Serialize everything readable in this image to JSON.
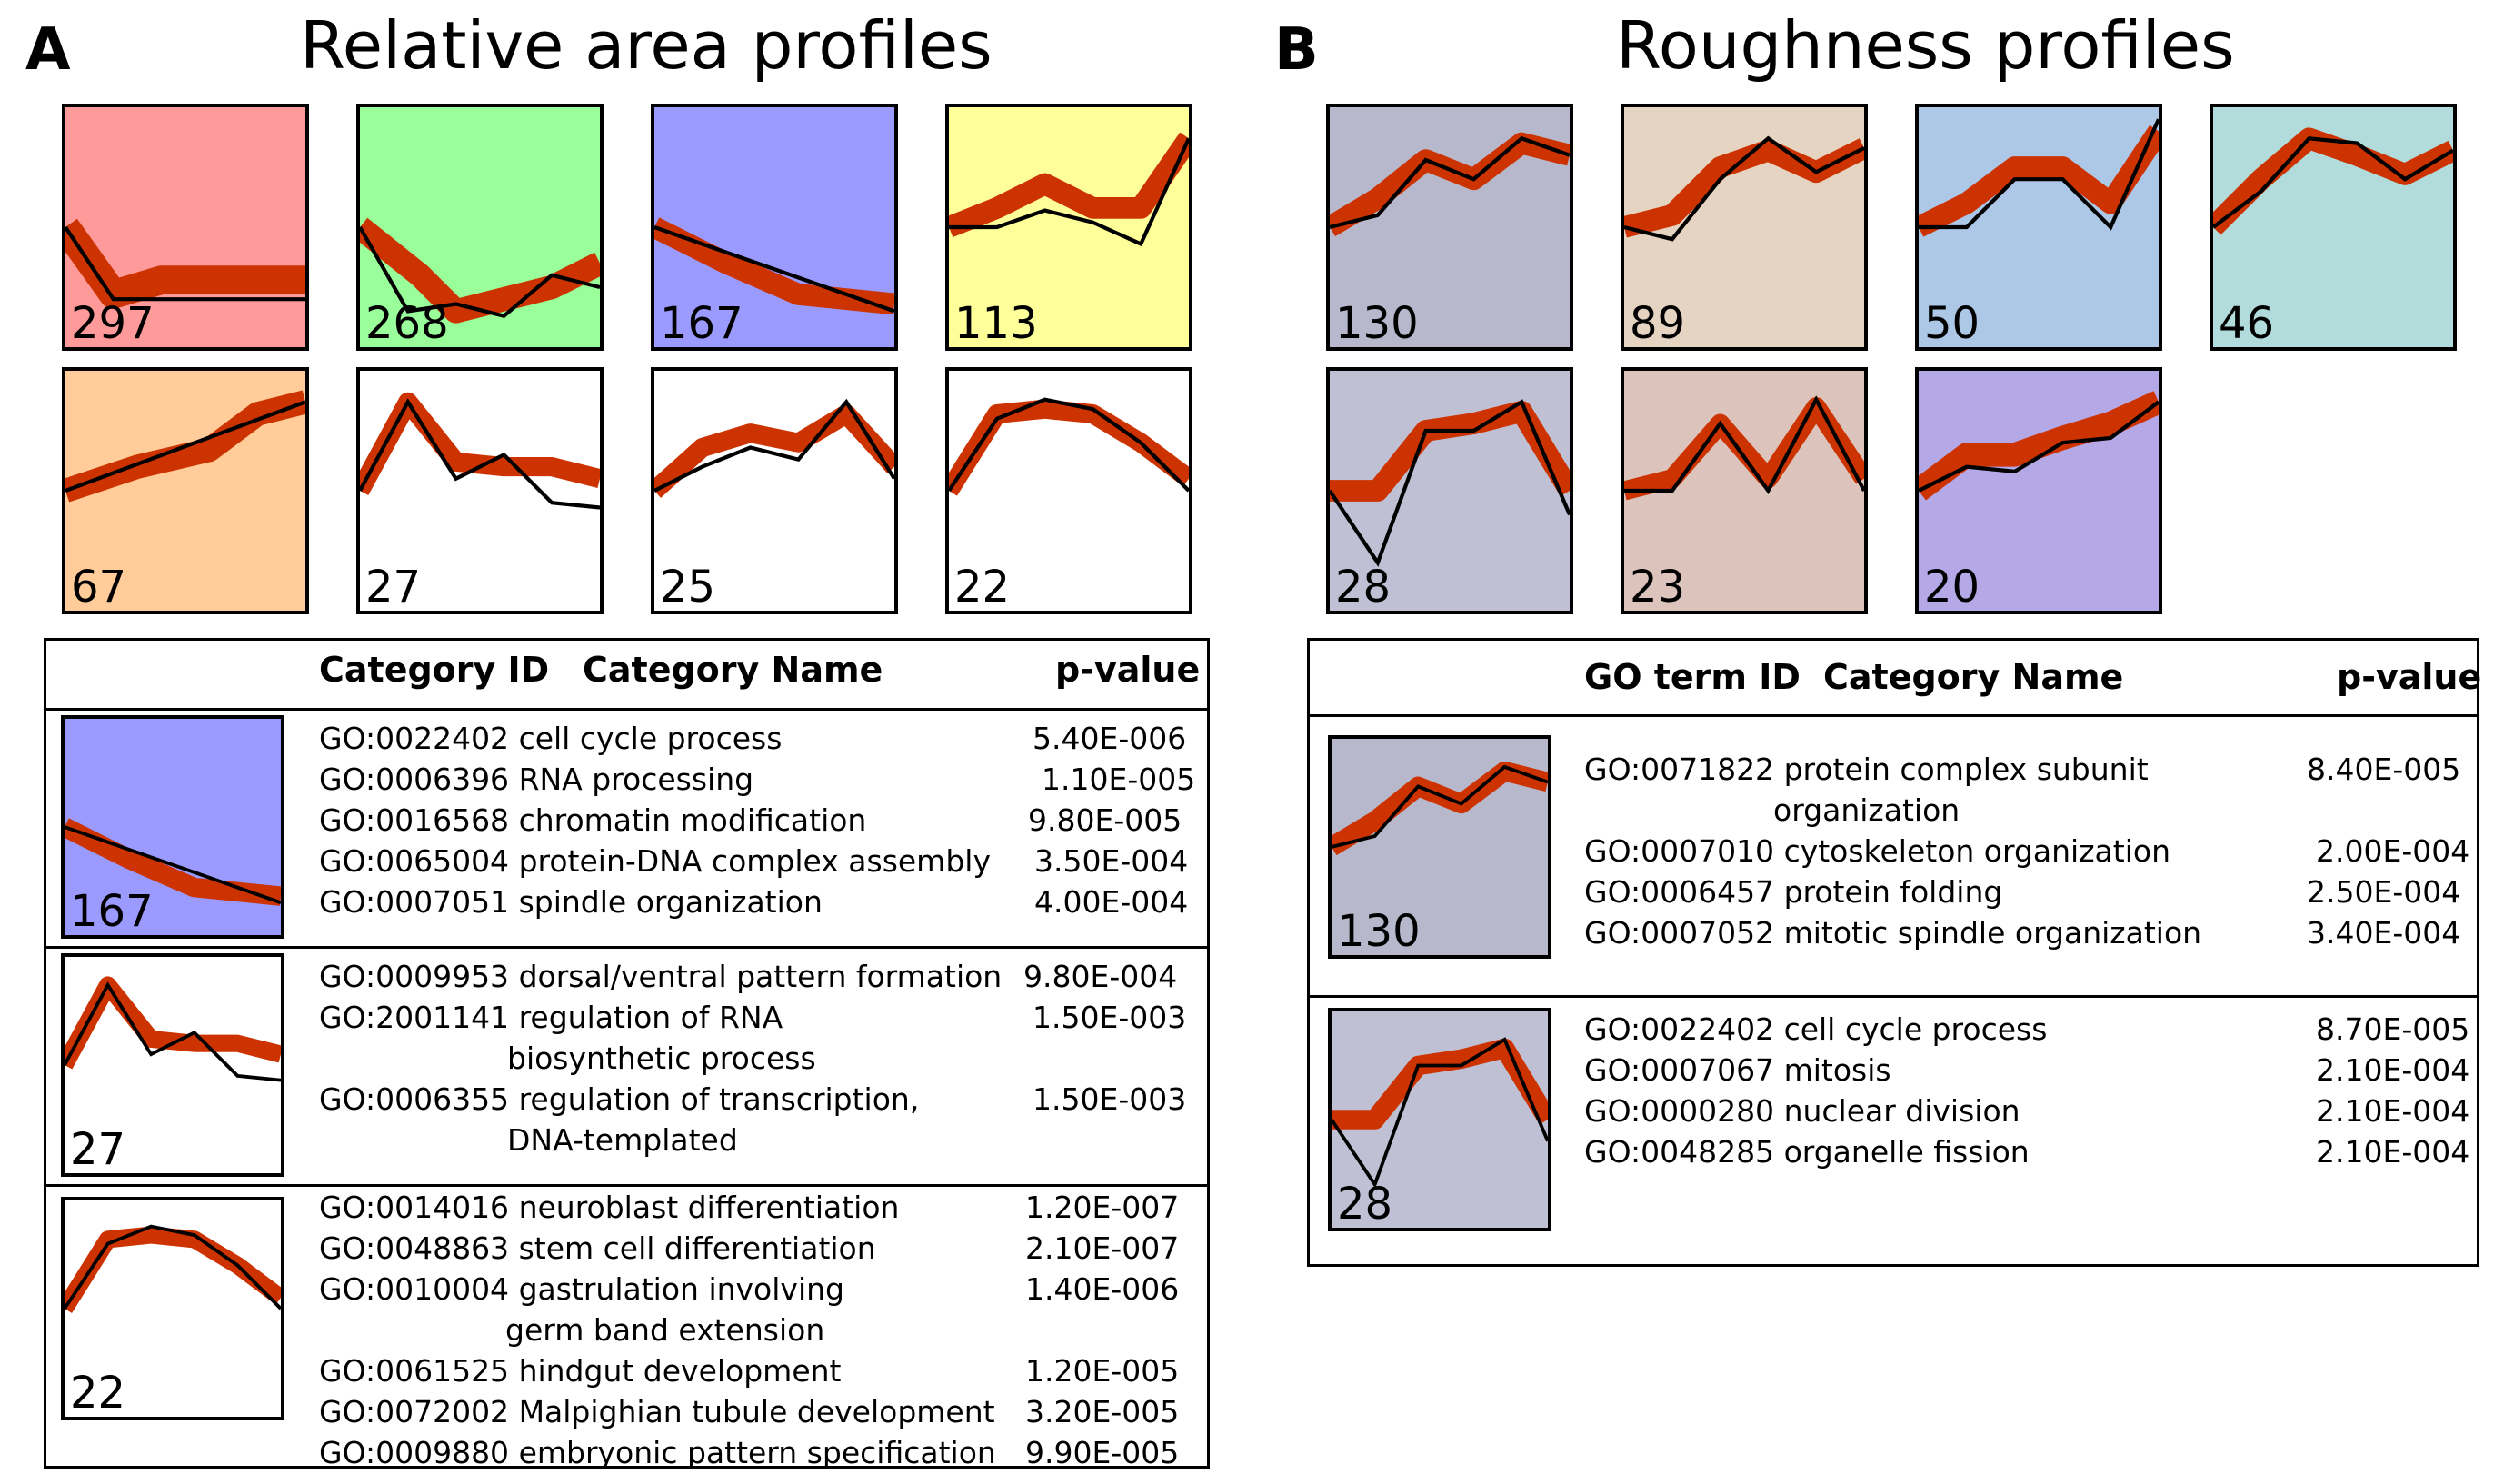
{
  "panelA": {
    "letter": "A",
    "title": "Relative area profiles",
    "profiles": [
      {
        "count": "297",
        "color": "#ff9a9a"
      },
      {
        "count": "268",
        "color": "#9aff9a"
      },
      {
        "count": "167",
        "color": "#9a9aff"
      },
      {
        "count": "113",
        "color": "#ffff9a"
      },
      {
        "count": "67",
        "color": "#ffcc9a"
      },
      {
        "count": "27",
        "color": "#ffffff"
      },
      {
        "count": "25",
        "color": "#ffffff"
      },
      {
        "count": "22",
        "color": "#ffffff"
      }
    ],
    "table": {
      "header": {
        "id": "Category ID",
        "name": "Category Name",
        "p": "p-value"
      },
      "groups": [
        {
          "count": "167",
          "color": "#9a9aff",
          "rows": [
            {
              "id": "GO:0022402",
              "name": "cell cycle process",
              "p": "5.40E-006"
            },
            {
              "id": "GO:0006396",
              "name": "RNA processing",
              "p": "1.10E-005"
            },
            {
              "id": "GO:0016568",
              "name": "chromatin modification",
              "p": "9.80E-005"
            },
            {
              "id": "GO:0065004",
              "name": "protein-DNA complex assembly",
              "p": "3.50E-004"
            },
            {
              "id": "GO:0007051",
              "name": "spindle organization",
              "p": "4.00E-004"
            }
          ]
        },
        {
          "count": "27",
          "color": "#ffffff",
          "rows": [
            {
              "id": "GO:0009953",
              "name": "dorsal/ventral pattern formation",
              "p": "9.80E-004"
            },
            {
              "id": "GO:2001141",
              "name": "regulation of RNA",
              "cont": "biosynthetic process",
              "p": "1.50E-003"
            },
            {
              "id": "GO:0006355",
              "name": "regulation of transcription,",
              "cont": "DNA-templated",
              "p": "1.50E-003"
            }
          ]
        },
        {
          "count": "22",
          "color": "#ffffff",
          "rows": [
            {
              "id": "GO:0014016",
              "name": "neuroblast differentiation",
              "p": "1.20E-007"
            },
            {
              "id": "GO:0048863",
              "name": "stem cell differentiation",
              "p": "2.10E-007"
            },
            {
              "id": "GO:0010004",
              "name": "gastrulation involving",
              "cont": "germ band extension",
              "p": "1.40E-006"
            },
            {
              "id": "GO:0061525",
              "name": "hindgut development",
              "p": "1.20E-005"
            },
            {
              "id": "GO:0072002",
              "name": "Malpighian tubule  development",
              "p": "3.20E-005"
            },
            {
              "id": "GO:0009880",
              "name": "embryonic pattern specification",
              "p": "9.90E-005"
            }
          ]
        }
      ]
    }
  },
  "panelB": {
    "letter": "B",
    "title": "Roughness profiles",
    "profiles": [
      {
        "count": "130",
        "color": "#b8b8cc"
      },
      {
        "count": "89",
        "color": "#e6d4c2"
      },
      {
        "count": "50",
        "color": "#adc8e6"
      },
      {
        "count": "46",
        "color": "#b2dcdc"
      },
      {
        "count": "28",
        "color": "#c0c0d4"
      },
      {
        "count": "23",
        "color": "#dcc4bc"
      },
      {
        "count": "20",
        "color": "#b4a8e6"
      }
    ],
    "table": {
      "header": {
        "id": "GO term ID",
        "name": "Category Name",
        "p": "p-value"
      },
      "groups": [
        {
          "count": "130",
          "color": "#b8b8cc",
          "rows": [
            {
              "id": "GO:0071822",
              "name": "protein complex subunit",
              "cont": "organization",
              "p": "8.40E-005"
            },
            {
              "id": "GO:0007010",
              "name": "cytoskeleton organization",
              "p": "2.00E-004"
            },
            {
              "id": "GO:0006457",
              "name": "protein folding",
              "p": "2.50E-004"
            },
            {
              "id": "GO:0007052",
              "name": "mitotic spindle organization",
              "p": "3.40E-004"
            }
          ]
        },
        {
          "count": "28",
          "color": "#c0c0d4",
          "rows": [
            {
              "id": "GO:0022402",
              "name": "cell cycle process",
              "p": "8.70E-005"
            },
            {
              "id": "GO:0007067",
              "name": "mitosis",
              "p": "2.10E-004"
            },
            {
              "id": "GO:0000280",
              "name": "nuclear division",
              "p": "2.10E-004"
            },
            {
              "id": "GO:0048285",
              "name": "organelle fission",
              "p": "2.10E-004"
            }
          ]
        }
      ]
    }
  },
  "colors": {
    "trace": "#cc3300",
    "mean": "#000000"
  }
}
